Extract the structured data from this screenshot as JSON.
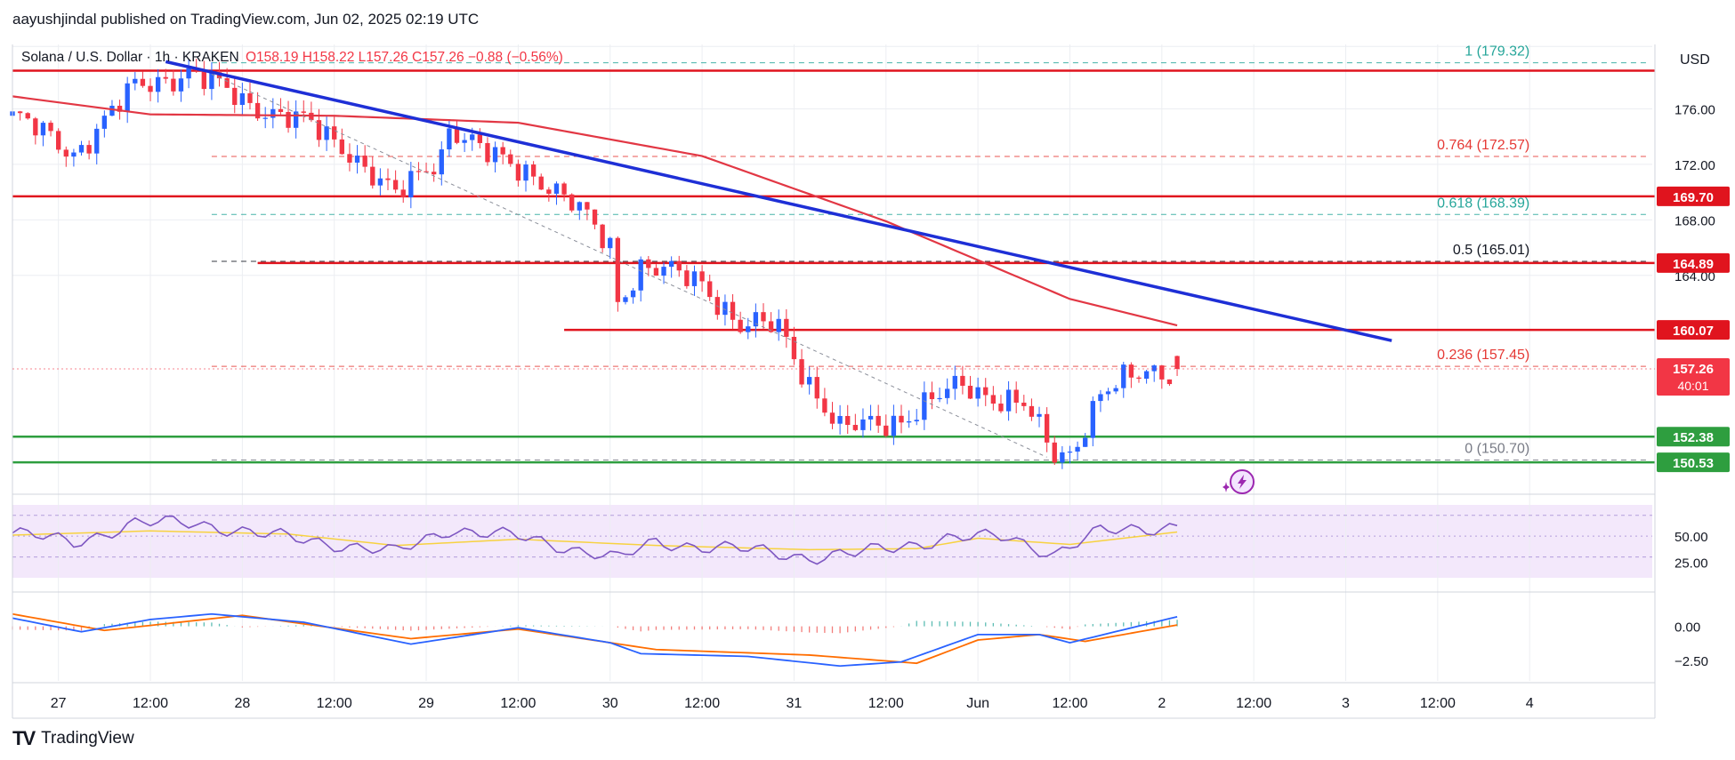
{
  "header": {
    "published": "aayushjindal published on TradingView.com, Jun 02, 2025 02:19 UTC"
  },
  "legend": {
    "symbol": "Solana / U.S. Dollar · 1h · KRAKEN",
    "ohlc": "O158.19  H158.22  L157.26  C157.26  −0.88 (−0.56%)"
  },
  "footer": {
    "brand": "TradingView",
    "logo": "TV"
  },
  "colors": {
    "up": "#2962ff",
    "down": "#f23645",
    "resistance": "#e0141e",
    "support": "#2e9e3f",
    "trend": "#1e2fd6",
    "ma": "#e23744",
    "rsi": "#7e57c2",
    "rsi_ma": "#f7d240",
    "rsi_band": "#f1e6fb",
    "macd": "#2962ff",
    "signal": "#ff6d00",
    "fib": "#e53935",
    "fib_green": "#26a69a"
  },
  "chart_data": {
    "type": "candlestick",
    "currency_label": "USD",
    "ylim": [
      149,
      180
    ],
    "y_ticks": [
      "176.00",
      "172.00",
      "168.00",
      "164.00"
    ],
    "x_axis": {
      "start": "2025-05-26T18:00Z",
      "end": "2025-06-04T16:00Z",
      "ticks": [
        {
          "t": "2025-05-27T00:00Z",
          "label": "27"
        },
        {
          "t": "2025-05-27T12:00Z",
          "label": "12:00"
        },
        {
          "t": "2025-05-28T00:00Z",
          "label": "28"
        },
        {
          "t": "2025-05-28T12:00Z",
          "label": "12:00"
        },
        {
          "t": "2025-05-29T00:00Z",
          "label": "29"
        },
        {
          "t": "2025-05-29T12:00Z",
          "label": "12:00"
        },
        {
          "t": "2025-05-30T00:00Z",
          "label": "30"
        },
        {
          "t": "2025-05-30T12:00Z",
          "label": "12:00"
        },
        {
          "t": "2025-05-31T00:00Z",
          "label": "31"
        },
        {
          "t": "2025-05-31T12:00Z",
          "label": "12:00"
        },
        {
          "t": "2025-06-01T00:00Z",
          "label": "Jun"
        },
        {
          "t": "2025-06-01T12:00Z",
          "label": "12:00"
        },
        {
          "t": "2025-06-02T00:00Z",
          "label": "2"
        },
        {
          "t": "2025-06-02T12:00Z",
          "label": "12:00"
        },
        {
          "t": "2025-06-03T00:00Z",
          "label": "3"
        },
        {
          "t": "2025-06-03T12:00Z",
          "label": "12:00"
        },
        {
          "t": "2025-06-04T00:00Z",
          "label": "4"
        }
      ]
    },
    "price_path": [
      {
        "t": "2025-05-26T18:00Z",
        "p": 175.5
      },
      {
        "t": "2025-05-27T02:00Z",
        "p": 172.8
      },
      {
        "t": "2025-05-27T10:00Z",
        "p": 177.5
      },
      {
        "t": "2025-05-27T17:00Z",
        "p": 178.7
      },
      {
        "t": "2025-05-28T00:00Z",
        "p": 176.6
      },
      {
        "t": "2025-05-28T08:00Z",
        "p": 175.0
      },
      {
        "t": "2025-05-28T14:00Z",
        "p": 173.0
      },
      {
        "t": "2025-05-28T20:00Z",
        "p": 169.6
      },
      {
        "t": "2025-05-29T02:00Z",
        "p": 172.8
      },
      {
        "t": "2025-05-29T03:00Z",
        "p": 174.8
      },
      {
        "t": "2025-05-29T08:00Z",
        "p": 172.6
      },
      {
        "t": "2025-05-29T14:00Z",
        "p": 171.4
      },
      {
        "t": "2025-05-29T20:00Z",
        "p": 168.6
      },
      {
        "t": "2025-05-30T00:00Z",
        "p": 166.2
      },
      {
        "t": "2025-05-30T01:00Z",
        "p": 162.3
      },
      {
        "t": "2025-05-30T04:00Z",
        "p": 164.6
      },
      {
        "t": "2025-05-30T12:00Z",
        "p": 163.6
      },
      {
        "t": "2025-05-30T17:00Z",
        "p": 160.3
      },
      {
        "t": "2025-05-30T22:00Z",
        "p": 160.3
      },
      {
        "t": "2025-05-31T02:00Z",
        "p": 156.3
      },
      {
        "t": "2025-05-31T06:00Z",
        "p": 152.8
      },
      {
        "t": "2025-05-31T14:00Z",
        "p": 153.7
      },
      {
        "t": "2025-05-31T22:00Z",
        "p": 156.1
      },
      {
        "t": "2025-06-01T06:00Z",
        "p": 154.6
      },
      {
        "t": "2025-06-01T10:00Z",
        "p": 151.0
      },
      {
        "t": "2025-06-01T12:00Z",
        "p": 151.2
      },
      {
        "t": "2025-06-01T16:00Z",
        "p": 155.5
      },
      {
        "t": "2025-06-01T22:00Z",
        "p": 157.0
      },
      {
        "t": "2025-06-02T02:00Z",
        "p": 157.26
      }
    ],
    "last_candle": {
      "o": 158.19,
      "h": 158.22,
      "l": 157.26,
      "c": 157.26
    },
    "moving_average": [
      {
        "t": "2025-05-26T18:00Z",
        "p": 176.9
      },
      {
        "t": "2025-05-27T12:00Z",
        "p": 175.6
      },
      {
        "t": "2025-05-28T12:00Z",
        "p": 175.5
      },
      {
        "t": "2025-05-29T12:00Z",
        "p": 175.0
      },
      {
        "t": "2025-05-30T12:00Z",
        "p": 172.6
      },
      {
        "t": "2025-05-31T12:00Z",
        "p": 167.9
      },
      {
        "t": "2025-06-01T12:00Z",
        "p": 162.3
      },
      {
        "t": "2025-06-02T02:00Z",
        "p": 160.4
      }
    ],
    "trend_line": {
      "from": {
        "t": "2025-05-27T14:00Z",
        "p": 179.4
      },
      "to": {
        "t": "2025-06-03T06:00Z",
        "p": 159.3
      }
    },
    "swing_dashed": {
      "from": {
        "t": "2025-05-27T20:00Z",
        "p": 178.5
      },
      "to": {
        "t": "2025-06-01T09:00Z",
        "p": 150.9
      }
    },
    "fibonacci": {
      "start": "2025-05-27T20:00Z",
      "end": "2025-06-04T00:00Z",
      "levels": [
        {
          "ratio": "1",
          "price": 179.32,
          "label": "1 (179.32)",
          "color": "#26a69a"
        },
        {
          "ratio": "0.764",
          "price": 172.57,
          "label": "0.764 (172.57)",
          "color": "#e53935"
        },
        {
          "ratio": "0.618",
          "price": 168.39,
          "label": "0.618 (168.39)",
          "color": "#26a69a"
        },
        {
          "ratio": "0.5",
          "price": 165.01,
          "label": "0.5 (165.01)",
          "color": "#131722"
        },
        {
          "ratio": "0.236",
          "price": 157.45,
          "label": "0.236 (157.45)",
          "color": "#e53935"
        },
        {
          "ratio": "0",
          "price": 150.7,
          "label": "0 (150.70)",
          "color": "#787b86"
        }
      ]
    },
    "horizontal_levels": [
      {
        "price": 178.75,
        "color": "#e0141e",
        "from": "2025-05-26T18:00Z"
      },
      {
        "price": 169.7,
        "color": "#e0141e",
        "from": "2025-05-26T18:00Z",
        "label": "169.70"
      },
      {
        "price": 164.89,
        "color": "#e0141e",
        "from": "2025-05-28T02:00Z",
        "label": "164.89",
        "dashed": true
      },
      {
        "price": 160.07,
        "color": "#e0141e",
        "from": "2025-05-29T18:00Z",
        "label": "160.07"
      },
      {
        "price": 152.38,
        "color": "#2e9e3f",
        "from": "2025-05-26T18:00Z",
        "label": "152.38"
      },
      {
        "price": 150.53,
        "color": "#2e9e3f",
        "from": "2025-05-26T18:00Z",
        "label": "150.53"
      }
    ],
    "price_label": {
      "price": 157.26,
      "label": "157.26",
      "countdown": "40:01"
    },
    "rsi": {
      "ylim": [
        10,
        80
      ],
      "ticks": [
        "50.00",
        "25.00"
      ],
      "band": [
        30,
        70
      ],
      "path": [
        {
          "t": "2025-05-26T18:00Z",
          "v": 53
        },
        {
          "t": "2025-05-27T02:00Z",
          "v": 44
        },
        {
          "t": "2025-05-27T10:00Z",
          "v": 62
        },
        {
          "t": "2025-05-27T18:00Z",
          "v": 63
        },
        {
          "t": "2025-05-28T02:00Z",
          "v": 52
        },
        {
          "t": "2025-05-28T10:00Z",
          "v": 45
        },
        {
          "t": "2025-05-28T20:00Z",
          "v": 34
        },
        {
          "t": "2025-05-29T03:00Z",
          "v": 57
        },
        {
          "t": "2025-05-29T12:00Z",
          "v": 49
        },
        {
          "t": "2025-05-29T22:00Z",
          "v": 34
        },
        {
          "t": "2025-05-30T01:00Z",
          "v": 28
        },
        {
          "t": "2025-05-30T06:00Z",
          "v": 44
        },
        {
          "t": "2025-05-30T16:00Z",
          "v": 38
        },
        {
          "t": "2025-05-31T02:00Z",
          "v": 30
        },
        {
          "t": "2025-05-31T08:00Z",
          "v": 33
        },
        {
          "t": "2025-05-31T20:00Z",
          "v": 48
        },
        {
          "t": "2025-06-01T04:00Z",
          "v": 49
        },
        {
          "t": "2025-06-01T10:00Z",
          "v": 33
        },
        {
          "t": "2025-06-01T16:00Z",
          "v": 54
        },
        {
          "t": "2025-06-01T22:00Z",
          "v": 58
        },
        {
          "t": "2025-06-02T02:00Z",
          "v": 60
        }
      ],
      "ma_path": [
        {
          "t": "2025-05-26T18:00Z",
          "v": 51
        },
        {
          "t": "2025-05-27T12:00Z",
          "v": 55
        },
        {
          "t": "2025-05-28T06:00Z",
          "v": 52
        },
        {
          "t": "2025-05-28T20:00Z",
          "v": 41
        },
        {
          "t": "2025-05-29T12:00Z",
          "v": 47
        },
        {
          "t": "2025-05-30T06:00Z",
          "v": 41
        },
        {
          "t": "2025-05-31T02:00Z",
          "v": 37
        },
        {
          "t": "2025-05-31T16:00Z",
          "v": 38
        },
        {
          "t": "2025-06-01T00:00Z",
          "v": 48
        },
        {
          "t": "2025-06-01T12:00Z",
          "v": 42
        },
        {
          "t": "2025-06-02T02:00Z",
          "v": 54
        }
      ]
    },
    "macd": {
      "ylim": [
        -3.6,
        1.6
      ],
      "ticks": [
        "0.00",
        "−2.50"
      ],
      "tick_values": [
        0,
        -2.5
      ],
      "macd_path": [
        {
          "t": "2025-05-26T18:00Z",
          "v": 0.6
        },
        {
          "t": "2025-05-27T03:00Z",
          "v": -0.4
        },
        {
          "t": "2025-05-27T12:00Z",
          "v": 0.5
        },
        {
          "t": "2025-05-27T20:00Z",
          "v": 0.9
        },
        {
          "t": "2025-05-28T08:00Z",
          "v": 0.3
        },
        {
          "t": "2025-05-28T22:00Z",
          "v": -1.3
        },
        {
          "t": "2025-05-29T12:00Z",
          "v": -0.1
        },
        {
          "t": "2025-05-30T00:00Z",
          "v": -1.2
        },
        {
          "t": "2025-05-30T04:00Z",
          "v": -2.0
        },
        {
          "t": "2025-05-30T18:00Z",
          "v": -2.2
        },
        {
          "t": "2025-05-31T06:00Z",
          "v": -2.9
        },
        {
          "t": "2025-05-31T14:00Z",
          "v": -2.6
        },
        {
          "t": "2025-06-01T00:00Z",
          "v": -0.6
        },
        {
          "t": "2025-06-01T08:00Z",
          "v": -0.6
        },
        {
          "t": "2025-06-01T12:00Z",
          "v": -1.2
        },
        {
          "t": "2025-06-02T02:00Z",
          "v": 0.7
        }
      ],
      "signal_path": [
        {
          "t": "2025-05-26T18:00Z",
          "v": 0.9
        },
        {
          "t": "2025-05-27T06:00Z",
          "v": -0.3
        },
        {
          "t": "2025-05-28T00:00Z",
          "v": 0.8
        },
        {
          "t": "2025-05-28T22:00Z",
          "v": -0.9
        },
        {
          "t": "2025-05-29T12:00Z",
          "v": -0.2
        },
        {
          "t": "2025-05-30T06:00Z",
          "v": -1.7
        },
        {
          "t": "2025-05-31T02:00Z",
          "v": -2.1
        },
        {
          "t": "2025-05-31T16:00Z",
          "v": -2.7
        },
        {
          "t": "2025-06-01T00:00Z",
          "v": -1.0
        },
        {
          "t": "2025-06-01T08:00Z",
          "v": -0.6
        },
        {
          "t": "2025-06-01T14:00Z",
          "v": -1.1
        },
        {
          "t": "2025-06-02T02:00Z",
          "v": 0.1
        }
      ]
    }
  }
}
